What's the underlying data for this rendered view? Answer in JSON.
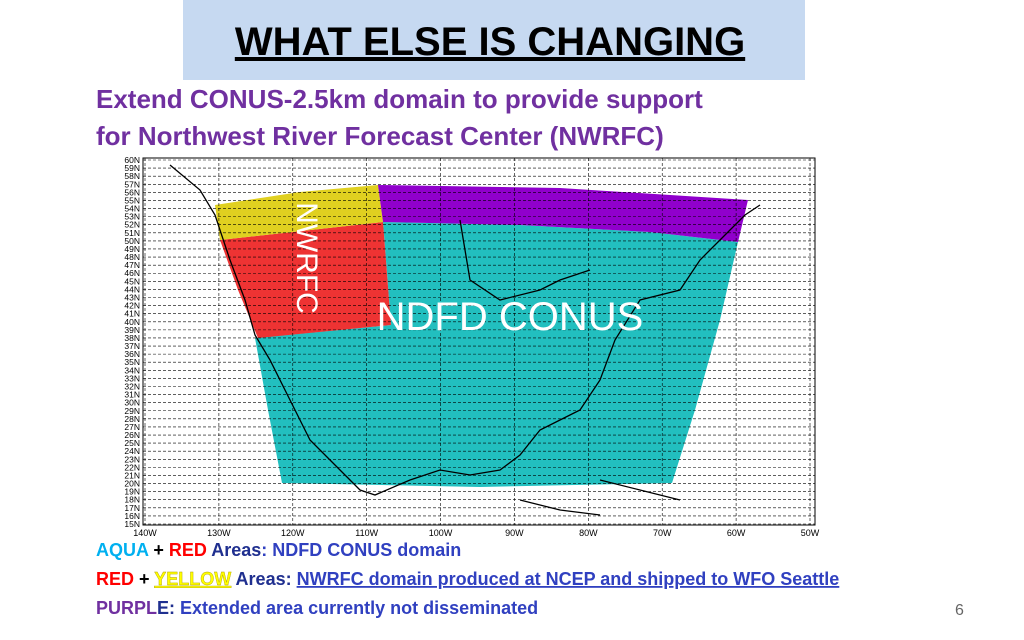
{
  "header": {
    "title": "WHAT ELSE IS CHANGING",
    "subtitle": [
      "Extend CONUS-2.5km domain to provide support",
      "for Northwest River Forecast Center (NWRFC)"
    ]
  },
  "map": {
    "lat_labels": [
      "15N",
      "16N",
      "17N",
      "18N",
      "19N",
      "20N",
      "21N",
      "22N",
      "23N",
      "24N",
      "25N",
      "26N",
      "27N",
      "28N",
      "29N",
      "30N",
      "31N",
      "32N",
      "33N",
      "34N",
      "35N",
      "36N",
      "37N",
      "38N",
      "39N",
      "40N",
      "41N",
      "42N",
      "43N",
      "44N",
      "45N",
      "46N",
      "47N",
      "48N",
      "49N",
      "50N",
      "51N",
      "52N",
      "53N",
      "54N",
      "55N",
      "56N",
      "57N",
      "58N",
      "59N",
      "60N"
    ],
    "lon_labels": [
      "140W",
      "130W",
      "120W",
      "110W",
      "100W",
      "90W",
      "80W",
      "70W",
      "60W",
      "50W"
    ],
    "region_labels": {
      "nwrfc": "NWRFC",
      "conus": "NDFD CONUS"
    }
  },
  "notes": [
    [
      {
        "text": "AQUA",
        "color": "#00b0f0"
      },
      {
        "text": " + ",
        "color": "#000000"
      },
      {
        "text": "RED",
        "color": "#ff0000"
      },
      {
        "text": " Areas",
        "color": "#1f2f8f"
      },
      {
        "text": ": NDFD CONUS domain",
        "color": "#3040c0"
      }
    ],
    [
      {
        "text": "RED",
        "color": "#ff0000"
      },
      {
        "text": " + ",
        "color": "#000000"
      },
      {
        "text": "YELLOW",
        "color": "#ffff00",
        "underline": true
      },
      {
        "text": " Areas: ",
        "color": "#1f2f8f"
      },
      {
        "text": "NWRFC domain produced at NCEP and shipped to WFO Seattle",
        "color": "#3040c0",
        "underline": true
      }
    ],
    [
      {
        "text": "PURPL",
        "color": "#7030a0"
      },
      {
        "text": "E: ",
        "color": "#1f2f8f"
      },
      {
        "text": "Extended area currently not disseminated",
        "color": "#3040c0"
      }
    ]
  ],
  "footer": {
    "page": "6"
  }
}
